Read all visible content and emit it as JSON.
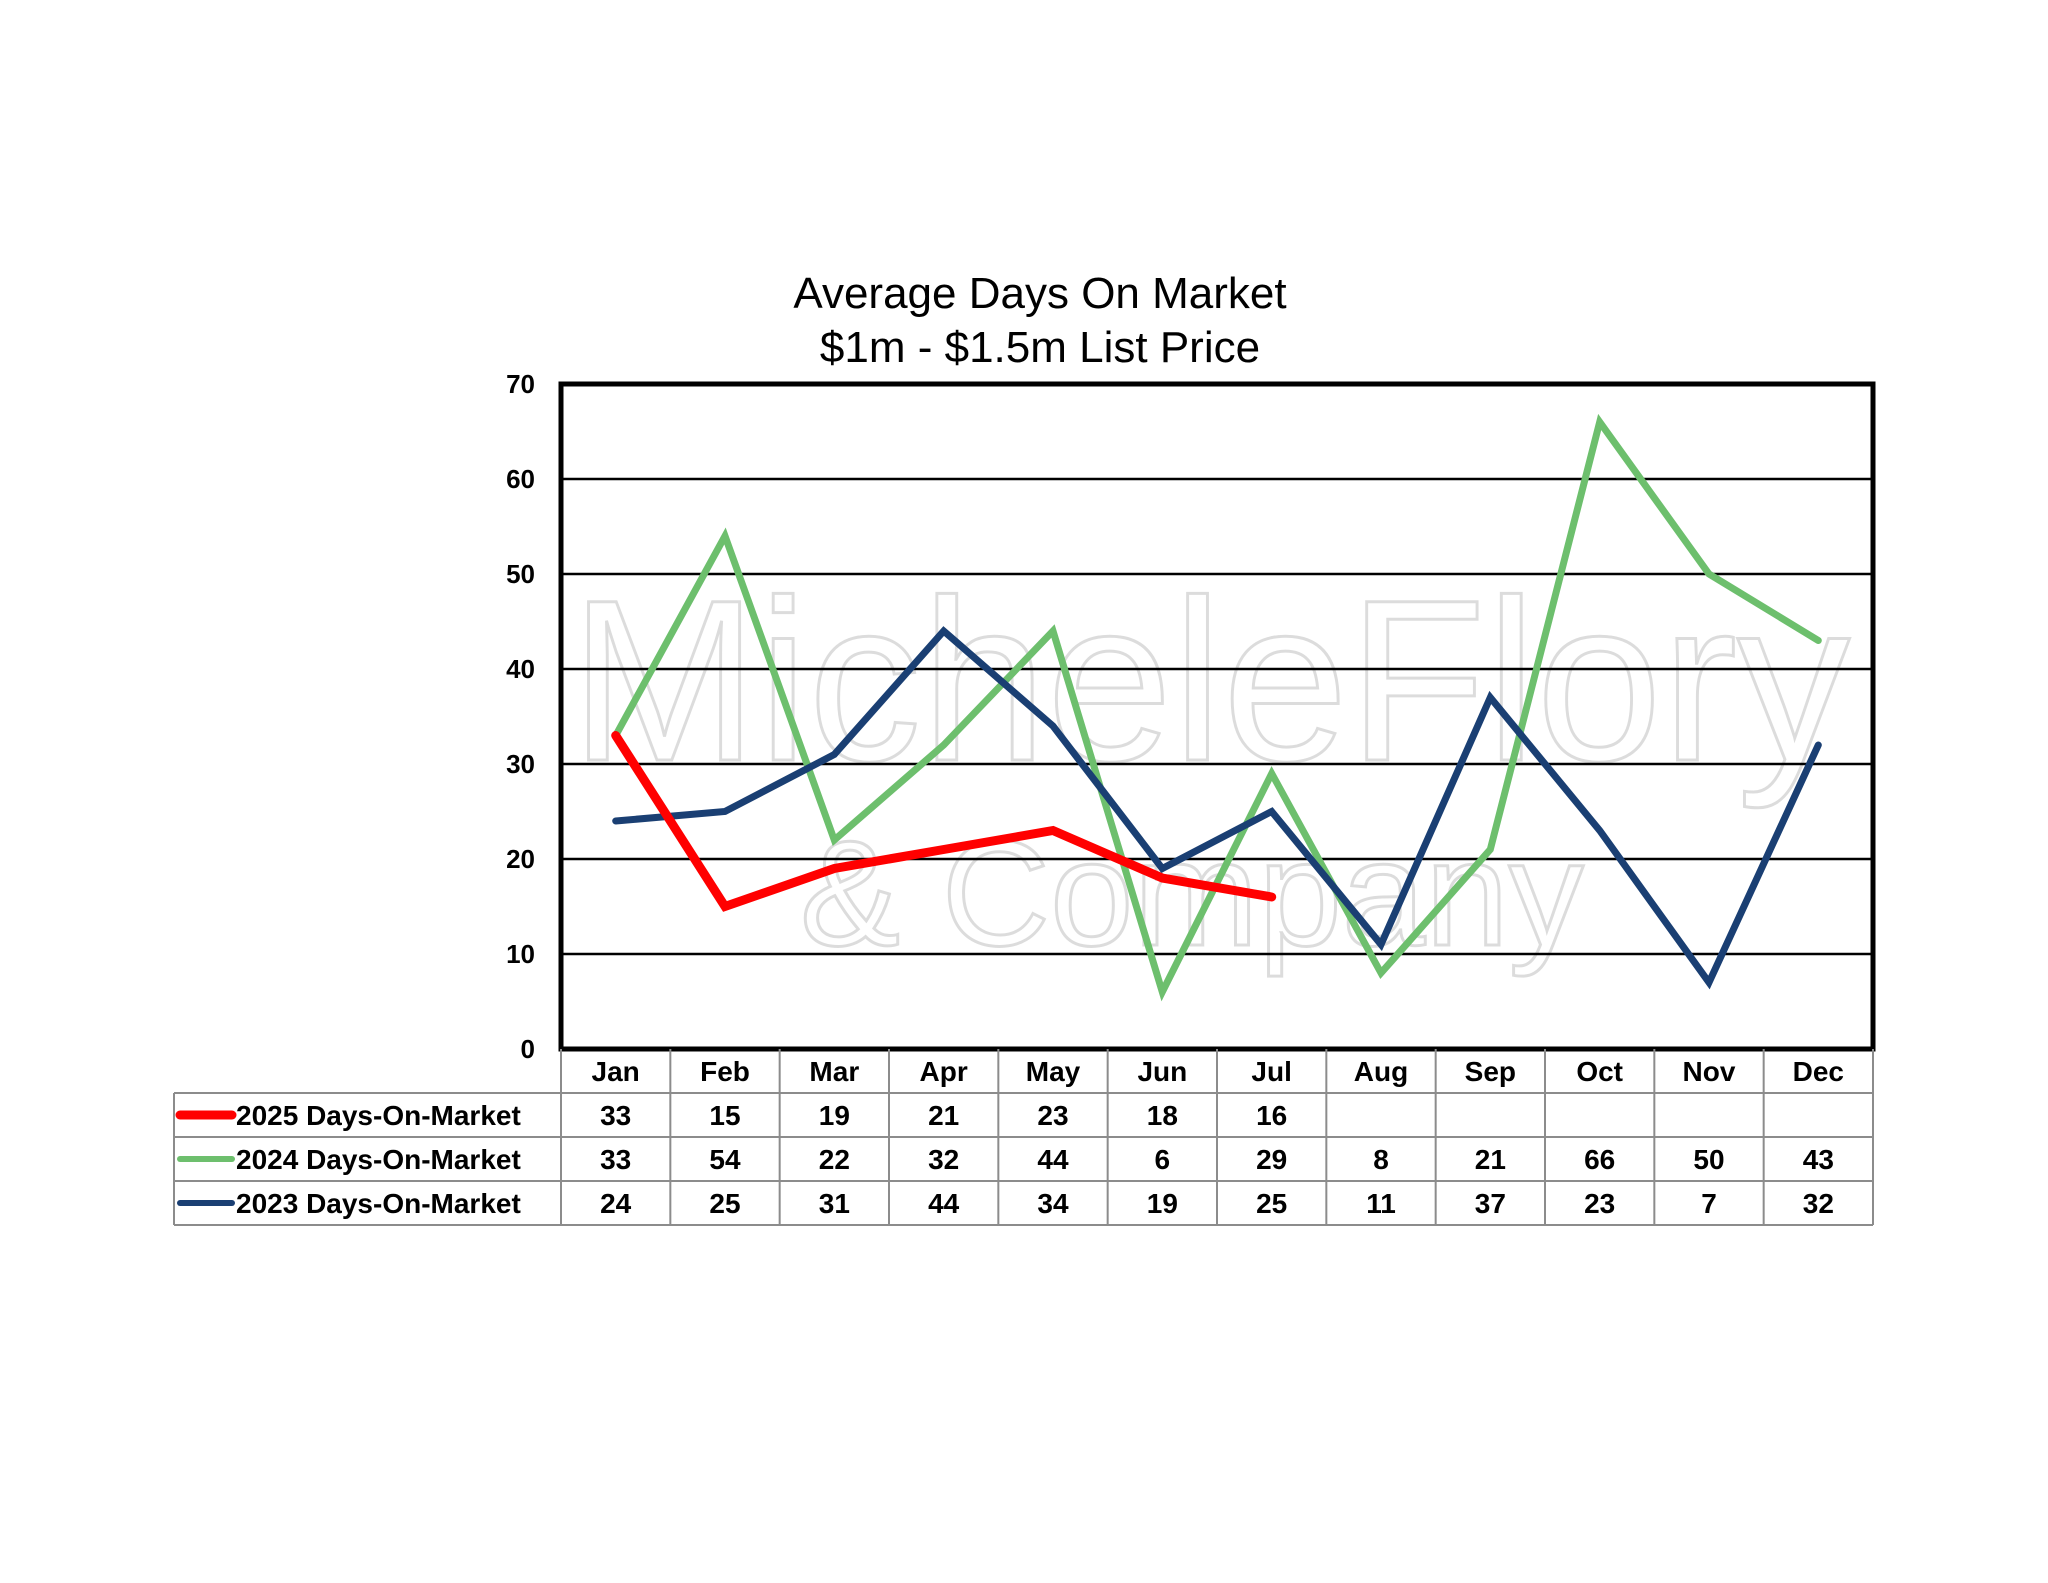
{
  "chart_data": {
    "type": "line",
    "title": "Average Days On Market",
    "subtitle": "$1m - $1.5m List Price",
    "categories": [
      "Jan",
      "Feb",
      "Mar",
      "Apr",
      "May",
      "Jun",
      "Jul",
      "Aug",
      "Sep",
      "Oct",
      "Nov",
      "Dec"
    ],
    "ylim": [
      0,
      70
    ],
    "yticks": [
      0,
      10,
      20,
      30,
      40,
      50,
      60,
      70
    ],
    "grid": true,
    "legend": "data-table-below",
    "series": [
      {
        "name": "2025 Days-On-Market",
        "color": "#ff0000",
        "values": [
          33,
          15,
          19,
          21,
          23,
          18,
          16,
          null,
          null,
          null,
          null,
          null
        ]
      },
      {
        "name": "2024 Days-On-Market",
        "color": "#6dbf6d",
        "values": [
          33,
          54,
          22,
          32,
          44,
          6,
          29,
          8,
          21,
          66,
          50,
          43
        ]
      },
      {
        "name": "2023 Days-On-Market",
        "color": "#1a3f73",
        "values": [
          24,
          25,
          31,
          44,
          34,
          19,
          25,
          11,
          37,
          23,
          7,
          32
        ]
      }
    ]
  },
  "watermark": {
    "line1": "MicheleFlory",
    "line2": "& Company"
  }
}
